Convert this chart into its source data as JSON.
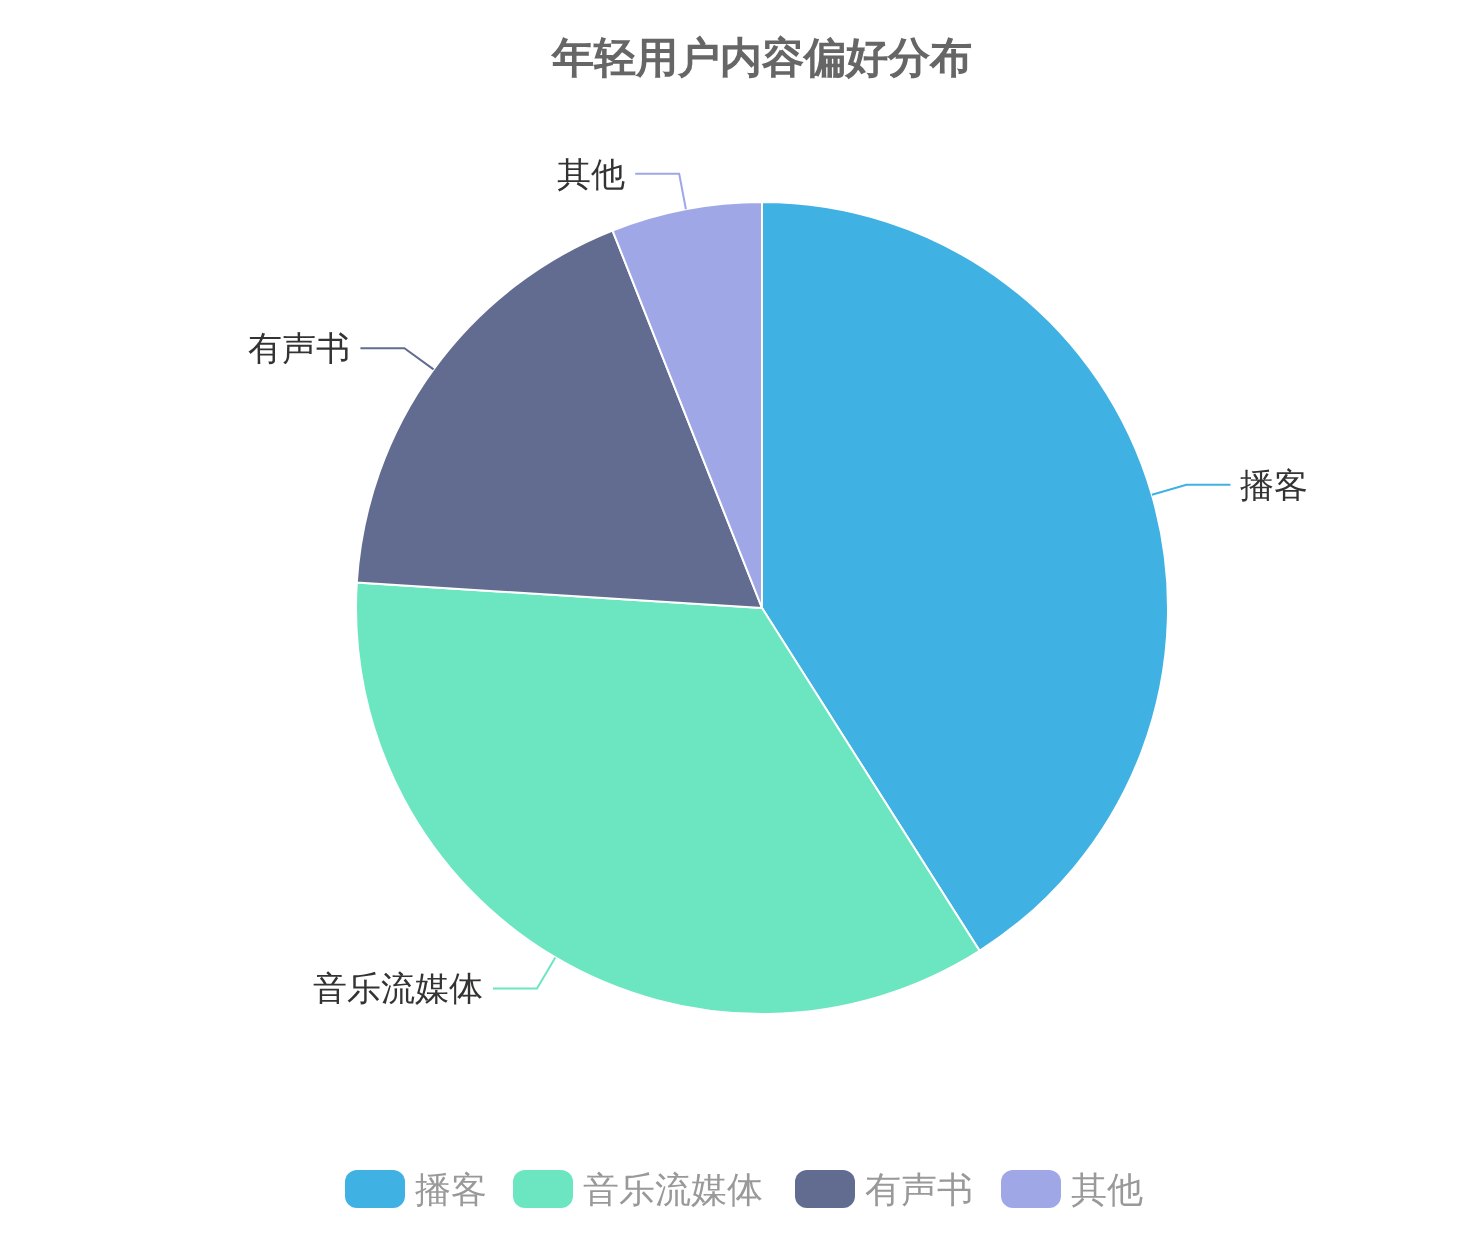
{
  "chart_data": {
    "type": "pie",
    "title": "年轻用户内容偏好分布",
    "categories": [
      "播客",
      "音乐流媒体",
      "有声书",
      "其他"
    ],
    "values": [
      41,
      35,
      18,
      6
    ],
    "colors": [
      "#3fb1e3",
      "#6be6c1",
      "#626c91",
      "#a0a7e6"
    ],
    "legend": "bottom"
  }
}
